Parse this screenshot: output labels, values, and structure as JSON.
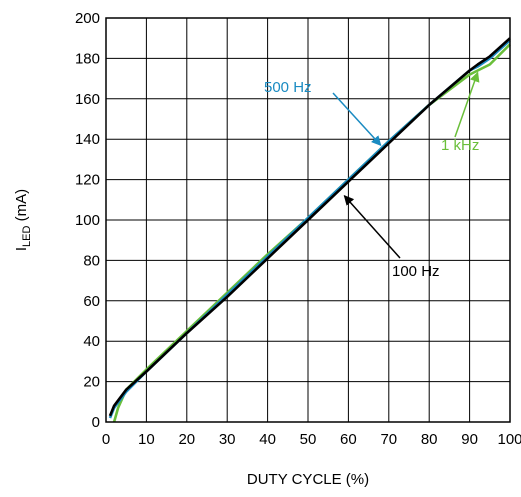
{
  "chart_data": {
    "type": "line",
    "title": "",
    "xlabel": "DUTY CYCLE (%)",
    "ylabel": {
      "main": "I",
      "sub": "LED",
      "unit": " (mA)"
    },
    "xlim": [
      0,
      100
    ],
    "ylim": [
      0,
      200
    ],
    "x_ticks": [
      0,
      10,
      20,
      30,
      40,
      50,
      60,
      70,
      80,
      90,
      100
    ],
    "y_ticks": [
      0,
      20,
      40,
      60,
      80,
      100,
      120,
      140,
      160,
      180,
      200
    ],
    "grid": true,
    "series": [
      {
        "name": "100 Hz",
        "color": "#000000",
        "x": [
          1,
          2,
          5,
          10,
          20,
          30,
          40,
          50,
          60,
          70,
          80,
          90,
          92,
          95,
          100
        ],
        "y": [
          3,
          8,
          16,
          25,
          44,
          62,
          81,
          100,
          119,
          138,
          157,
          174,
          177,
          181,
          190
        ]
      },
      {
        "name": "500 Hz",
        "color": "#1a8bc2",
        "x": [
          1,
          2,
          5,
          10,
          20,
          30,
          40,
          50,
          60,
          70,
          80,
          90,
          92,
          95,
          100
        ],
        "y": [
          2,
          7,
          15,
          25,
          44,
          63,
          82,
          101,
          120,
          139,
          157,
          174,
          176,
          180,
          189
        ]
      },
      {
        "name": "1 kHz",
        "color": "#6abf3a",
        "x": [
          2,
          3,
          5,
          10,
          20,
          30,
          40,
          50,
          60,
          70,
          80,
          90,
          92,
          95,
          100
        ],
        "y": [
          0,
          7,
          16,
          26,
          45,
          64,
          83,
          101,
          120,
          139,
          157,
          172,
          174,
          177,
          187
        ]
      }
    ],
    "annotations": [
      {
        "text": "500 Hz",
        "color": "#1a8bc2",
        "target": [
          68,
          137
        ]
      },
      {
        "text": "1 kHz",
        "color": "#6abf3a",
        "target": [
          92,
          173
        ]
      },
      {
        "text": "100 Hz",
        "color": "#000000",
        "target": [
          59,
          112
        ]
      }
    ]
  }
}
